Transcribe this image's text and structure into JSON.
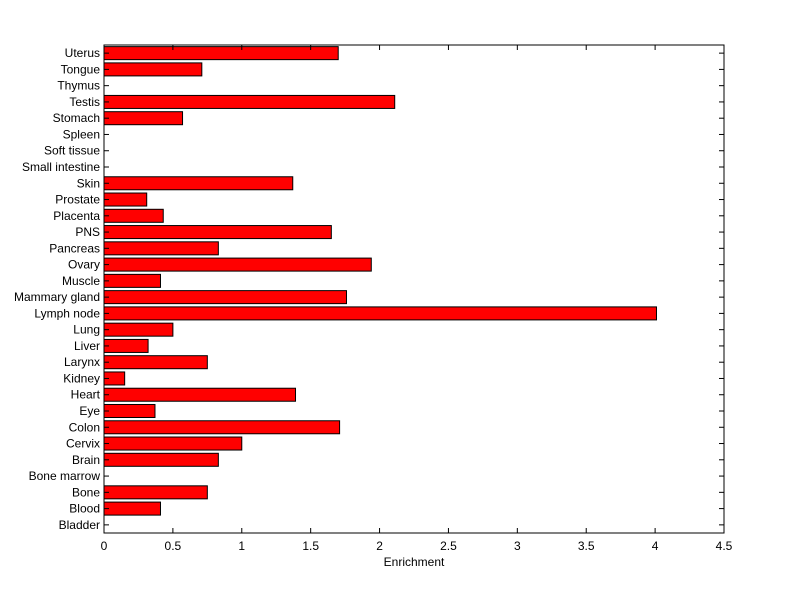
{
  "chart_data": {
    "type": "bar",
    "orientation": "horizontal",
    "title": "",
    "xlabel": "Enrichment",
    "ylabel": "",
    "xlim": [
      0,
      4.5
    ],
    "xticks": [
      "0",
      "0.5",
      "1",
      "1.5",
      "2",
      "2.5",
      "3",
      "3.5",
      "4",
      "4.5"
    ],
    "grid": false,
    "bar_color": "#ff0000",
    "categories": [
      "Uterus",
      "Tongue",
      "Thymus",
      "Testis",
      "Stomach",
      "Spleen",
      "Soft tissue",
      "Small intestine",
      "Skin",
      "Prostate",
      "Placenta",
      "PNS",
      "Pancreas",
      "Ovary",
      "Muscle",
      "Mammary gland",
      "Lymph node",
      "Lung",
      "Liver",
      "Larynx",
      "Kidney",
      "Heart",
      "Eye",
      "Colon",
      "Cervix",
      "Brain",
      "Bone marrow",
      "Bone",
      "Blood",
      "Bladder"
    ],
    "values": [
      1.7,
      0.71,
      0,
      2.11,
      0.57,
      0,
      0,
      0,
      1.37,
      0.31,
      0.43,
      1.65,
      0.83,
      1.94,
      0.41,
      1.76,
      4.01,
      0.5,
      0.32,
      0.75,
      0.15,
      1.39,
      0.37,
      1.71,
      1.0,
      0.83,
      0,
      0.75,
      0.41,
      0
    ]
  }
}
